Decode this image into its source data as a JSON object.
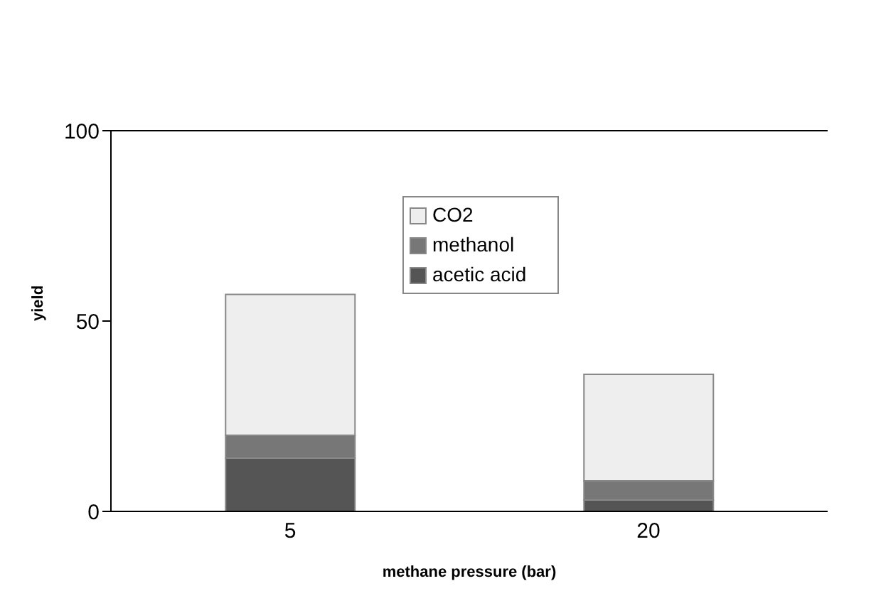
{
  "chart_data": {
    "type": "bar",
    "xlabel": "methane pressure (bar)",
    "ylabel": "yield",
    "categories": [
      "5",
      "20"
    ],
    "stacked": true,
    "series": [
      {
        "name": "acetic acid",
        "color": "#555555",
        "values": [
          14,
          3
        ]
      },
      {
        "name": "methanol",
        "color": "#777777",
        "values": [
          6,
          5
        ]
      },
      {
        "name": "CO2",
        "color": "#eeeeee",
        "values": [
          37,
          28
        ]
      }
    ],
    "ylim": [
      0,
      100
    ],
    "yticks": [
      0,
      50,
      100
    ],
    "legend": "top",
    "grid": false
  }
}
